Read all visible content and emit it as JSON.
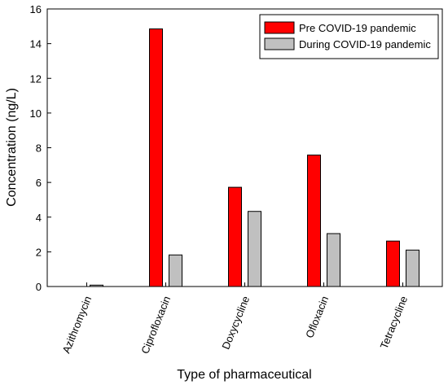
{
  "chart_data": {
    "type": "bar",
    "xlabel": "Type of pharmaceutical",
    "ylabel": "Concentration (ng/L)",
    "ylim": [
      0,
      16
    ],
    "yticks": [
      0,
      2,
      4,
      6,
      8,
      10,
      12,
      14,
      16
    ],
    "categories": [
      "Azithromycin",
      "Ciprofloxacin",
      "Doxycycline",
      "Ofloxacin",
      "Tetracycline"
    ],
    "series": [
      {
        "name": "Pre COVID-19 pandemic",
        "color": "#ff0000",
        "values": [
          0,
          14.85,
          5.72,
          7.58,
          2.62
        ]
      },
      {
        "name": "During COVID-19 pandemic",
        "color": "#c0c0c0",
        "values": [
          0.08,
          1.82,
          4.33,
          3.05,
          2.1
        ]
      }
    ],
    "legend": "top-right",
    "grid": false
  }
}
